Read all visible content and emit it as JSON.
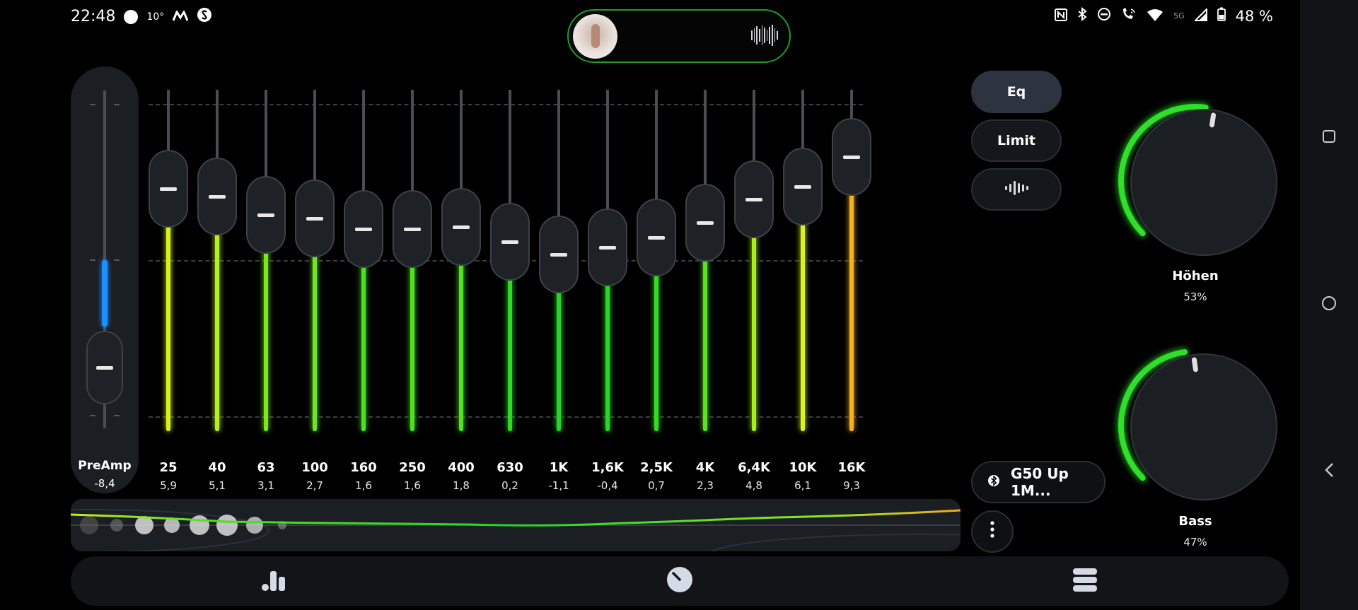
{
  "status_bar": {
    "time": "22:48",
    "temperature": "10°",
    "battery_percent": "48 %",
    "network_label": "5G",
    "icons_left": [
      "circle-icon",
      "app-m-icon",
      "shazam-icon"
    ],
    "icons_right": [
      "nfc-icon",
      "bluetooth-icon",
      "dnd-icon",
      "wifi-call-icon",
      "wifi-icon",
      "signal-icon",
      "battery-icon"
    ]
  },
  "now_playing": {
    "artwork": "album-art",
    "visualizer": "waveform-icon"
  },
  "preamp": {
    "label": "PreAmp",
    "value": "-8,4",
    "accent": "#1e8fff"
  },
  "bands": [
    {
      "freq": "25",
      "gain": "5,9",
      "color": "#d6f11c"
    },
    {
      "freq": "40",
      "gain": "5,1",
      "color": "#b8ef1e"
    },
    {
      "freq": "63",
      "gain": "3,1",
      "color": "#78e81f"
    },
    {
      "freq": "100",
      "gain": "2,7",
      "color": "#6ee51f"
    },
    {
      "freq": "160",
      "gain": "1,6",
      "color": "#4fe01f"
    },
    {
      "freq": "250",
      "gain": "1,6",
      "color": "#4fe01f"
    },
    {
      "freq": "400",
      "gain": "1,8",
      "color": "#52e01f"
    },
    {
      "freq": "630",
      "gain": "0,2",
      "color": "#2fd923"
    },
    {
      "freq": "1K",
      "gain": "-1,1",
      "color": "#22d626"
    },
    {
      "freq": "1,6K",
      "gain": "-0,4",
      "color": "#27d825"
    },
    {
      "freq": "2,5K",
      "gain": "0,7",
      "color": "#36da22"
    },
    {
      "freq": "4K",
      "gain": "2,3",
      "color": "#5ee21f"
    },
    {
      "freq": "6,4K",
      "gain": "4,8",
      "color": "#aaed1e"
    },
    {
      "freq": "10K",
      "gain": "6,1",
      "color": "#dcf21c"
    },
    {
      "freq": "16K",
      "gain": "9,3",
      "color": "#f5b21a"
    }
  ],
  "eq_range_db": [
    -15,
    15
  ],
  "preamp_range_db": [
    -15,
    15
  ],
  "modes": {
    "eq_label": "Eq",
    "limit_label": "Limit",
    "third_icon": "audio-wave-icon",
    "active": "eq"
  },
  "device": {
    "icon": "bluetooth-icon",
    "name": "G50 Up 1M..."
  },
  "dials": [
    {
      "label": "Höhen",
      "value": "53%",
      "level": 0.53
    },
    {
      "label": "Bass",
      "value": "47%",
      "level": 0.47
    }
  ],
  "accent_green": "#2ee02a",
  "bottom_nav": [
    "equalizer-icon",
    "dial-icon",
    "layers-icon"
  ],
  "system_nav": [
    "recents-icon",
    "home-icon",
    "back-icon"
  ]
}
